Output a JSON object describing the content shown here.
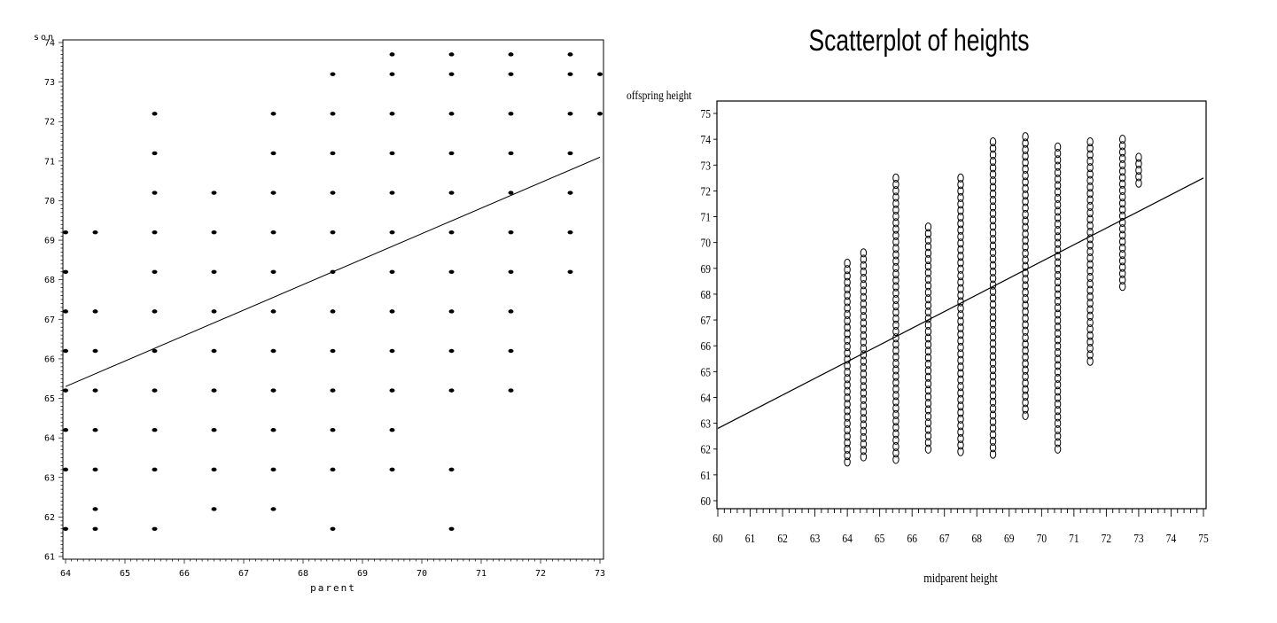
{
  "chart_data": [
    {
      "type": "scatter",
      "title": "",
      "xlabel": "parent",
      "ylabel": "son",
      "xlim": [
        64,
        73
      ],
      "ylim": [
        61,
        74
      ],
      "xticks": [
        64,
        65,
        66,
        67,
        68,
        69,
        70,
        71,
        72,
        73
      ],
      "yticks": [
        61,
        62,
        63,
        64,
        65,
        66,
        67,
        68,
        69,
        70,
        71,
        72,
        73,
        74
      ],
      "grid": false,
      "points": [
        [
          64,
          61.7
        ],
        [
          64,
          63.2
        ],
        [
          64,
          64.2
        ],
        [
          64,
          65.2
        ],
        [
          64,
          66.2
        ],
        [
          64,
          67.2
        ],
        [
          64,
          68.2
        ],
        [
          64,
          69.2
        ],
        [
          64.5,
          61.7
        ],
        [
          64.5,
          62.2
        ],
        [
          64.5,
          63.2
        ],
        [
          64.5,
          64.2
        ],
        [
          64.5,
          65.2
        ],
        [
          64.5,
          66.2
        ],
        [
          64.5,
          67.2
        ],
        [
          64.5,
          69.2
        ],
        [
          65.5,
          61.7
        ],
        [
          65.5,
          63.2
        ],
        [
          65.5,
          64.2
        ],
        [
          65.5,
          65.2
        ],
        [
          65.5,
          66.2
        ],
        [
          65.5,
          67.2
        ],
        [
          65.5,
          68.2
        ],
        [
          65.5,
          69.2
        ],
        [
          65.5,
          70.2
        ],
        [
          65.5,
          71.2
        ],
        [
          65.5,
          72.2
        ],
        [
          66.5,
          62.2
        ],
        [
          66.5,
          63.2
        ],
        [
          66.5,
          64.2
        ],
        [
          66.5,
          65.2
        ],
        [
          66.5,
          66.2
        ],
        [
          66.5,
          67.2
        ],
        [
          66.5,
          68.2
        ],
        [
          66.5,
          69.2
        ],
        [
          66.5,
          70.2
        ],
        [
          67.5,
          62.2
        ],
        [
          67.5,
          63.2
        ],
        [
          67.5,
          64.2
        ],
        [
          67.5,
          65.2
        ],
        [
          67.5,
          66.2
        ],
        [
          67.5,
          67.2
        ],
        [
          67.5,
          68.2
        ],
        [
          67.5,
          69.2
        ],
        [
          67.5,
          70.2
        ],
        [
          67.5,
          71.2
        ],
        [
          67.5,
          72.2
        ],
        [
          68.5,
          61.7
        ],
        [
          68.5,
          63.2
        ],
        [
          68.5,
          64.2
        ],
        [
          68.5,
          65.2
        ],
        [
          68.5,
          66.2
        ],
        [
          68.5,
          67.2
        ],
        [
          68.5,
          68.2
        ],
        [
          68.5,
          69.2
        ],
        [
          68.5,
          70.2
        ],
        [
          68.5,
          71.2
        ],
        [
          68.5,
          72.2
        ],
        [
          68.5,
          73.2
        ],
        [
          69.5,
          63.2
        ],
        [
          69.5,
          64.2
        ],
        [
          69.5,
          65.2
        ],
        [
          69.5,
          66.2
        ],
        [
          69.5,
          67.2
        ],
        [
          69.5,
          68.2
        ],
        [
          69.5,
          69.2
        ],
        [
          69.5,
          70.2
        ],
        [
          69.5,
          71.2
        ],
        [
          69.5,
          72.2
        ],
        [
          69.5,
          73.2
        ],
        [
          69.5,
          73.7
        ],
        [
          70.5,
          61.7
        ],
        [
          70.5,
          63.2
        ],
        [
          70.5,
          65.2
        ],
        [
          70.5,
          66.2
        ],
        [
          70.5,
          67.2
        ],
        [
          70.5,
          68.2
        ],
        [
          70.5,
          69.2
        ],
        [
          70.5,
          70.2
        ],
        [
          70.5,
          71.2
        ],
        [
          70.5,
          72.2
        ],
        [
          70.5,
          73.2
        ],
        [
          70.5,
          73.7
        ],
        [
          71.5,
          65.2
        ],
        [
          71.5,
          66.2
        ],
        [
          71.5,
          67.2
        ],
        [
          71.5,
          68.2
        ],
        [
          71.5,
          69.2
        ],
        [
          71.5,
          70.2
        ],
        [
          71.5,
          71.2
        ],
        [
          71.5,
          72.2
        ],
        [
          71.5,
          73.2
        ],
        [
          71.5,
          73.7
        ],
        [
          72.5,
          68.2
        ],
        [
          72.5,
          69.2
        ],
        [
          72.5,
          70.2
        ],
        [
          72.5,
          71.2
        ],
        [
          72.5,
          72.2
        ],
        [
          72.5,
          73.2
        ],
        [
          72.5,
          73.7
        ],
        [
          73,
          72.2
        ],
        [
          73,
          73.2
        ]
      ],
      "fit_line": {
        "x": [
          64,
          73
        ],
        "y": [
          65.3,
          71.1
        ]
      }
    },
    {
      "type": "scatter",
      "title": "Scatterplot of heights",
      "xlabel": "midparent height",
      "ylabel": "offspring height",
      "xlim": [
        60,
        75
      ],
      "ylim": [
        60,
        75
      ],
      "xticks": [
        60,
        61,
        62,
        63,
        64,
        65,
        66,
        67,
        68,
        69,
        70,
        71,
        72,
        73,
        74,
        75
      ],
      "yticks": [
        60,
        61,
        62,
        63,
        64,
        65,
        66,
        67,
        68,
        69,
        70,
        71,
        72,
        73,
        74,
        75
      ],
      "grid": false,
      "columns": [
        {
          "x": 64.0,
          "y_min": 61.5,
          "y_max": 69.2
        },
        {
          "x": 64.5,
          "y_min": 61.7,
          "y_max": 69.6
        },
        {
          "x": 65.5,
          "y_min": 61.6,
          "y_max": 72.5
        },
        {
          "x": 66.5,
          "y_min": 62.0,
          "y_max": 70.6
        },
        {
          "x": 67.5,
          "y_min": 61.9,
          "y_max": 72.5
        },
        {
          "x": 68.5,
          "y_min": 61.8,
          "y_max": 73.9
        },
        {
          "x": 69.5,
          "y_min": 63.3,
          "y_max": 74.1
        },
        {
          "x": 70.5,
          "y_min": 62.0,
          "y_max": 73.7
        },
        {
          "x": 71.5,
          "y_min": 65.4,
          "y_max": 73.9
        },
        {
          "x": 72.5,
          "y_min": 68.3,
          "y_max": 74.0
        },
        {
          "x": 73.0,
          "y_min": 72.3,
          "y_max": 73.3
        }
      ],
      "fit_line": {
        "x": [
          60,
          75
        ],
        "y": [
          62.8,
          72.5
        ]
      }
    }
  ]
}
